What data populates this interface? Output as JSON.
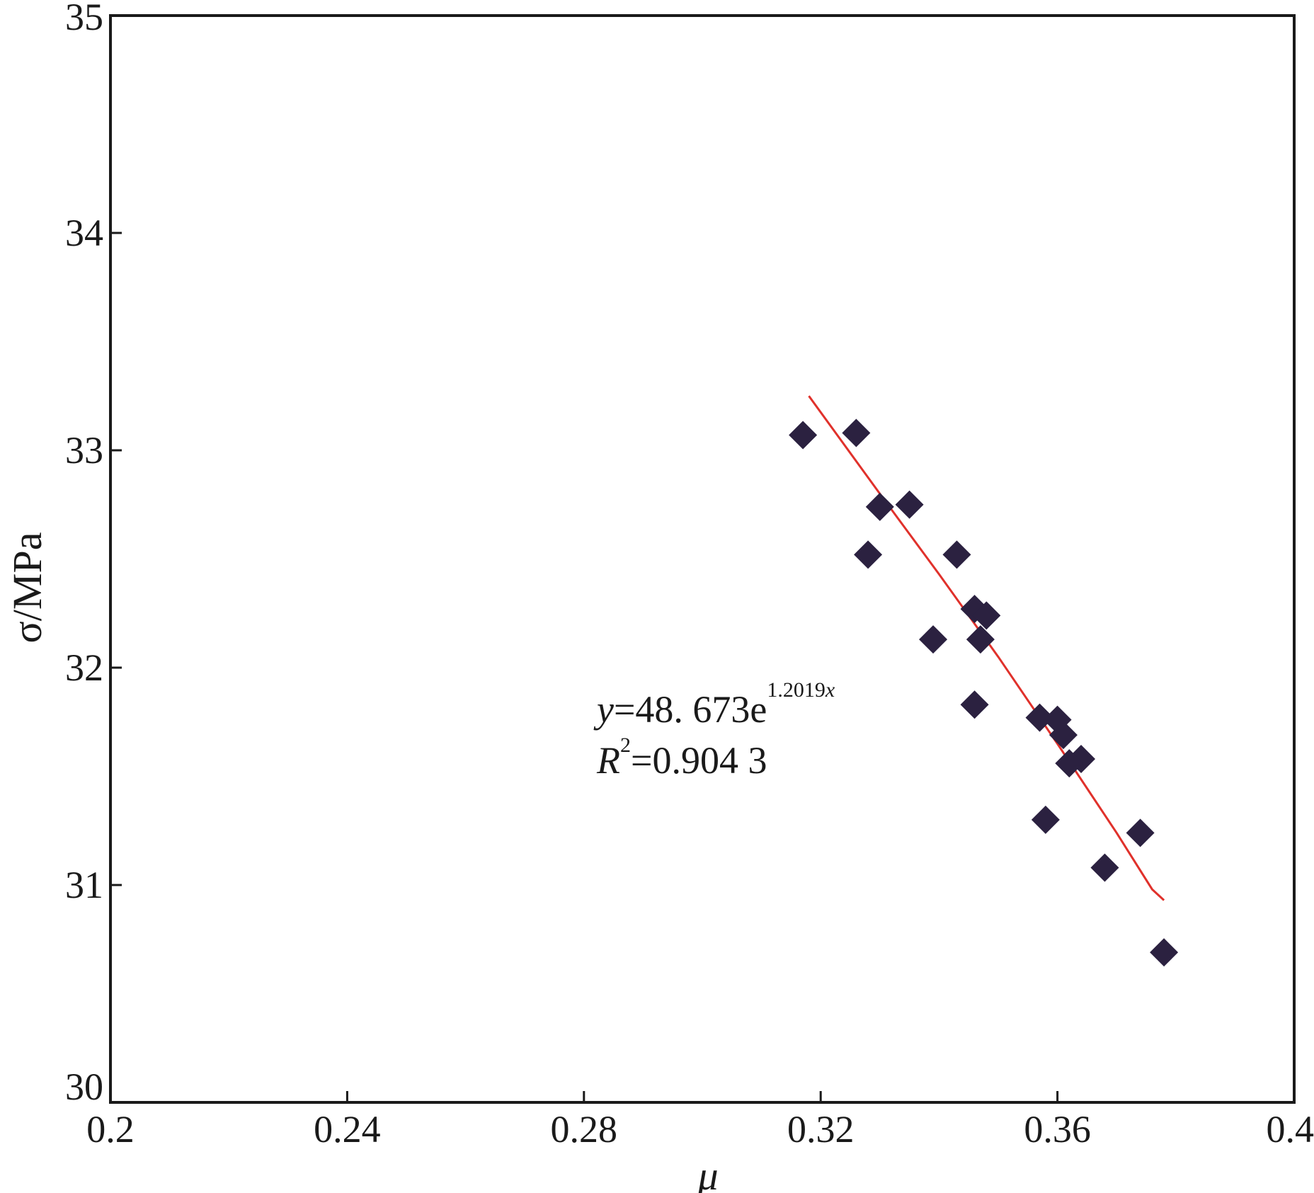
{
  "chart_data": {
    "type": "scatter",
    "title": "",
    "xlabel": "μ",
    "ylabel": "σ/MPa",
    "xlim": [
      0.2,
      0.4
    ],
    "ylim": [
      30,
      35
    ],
    "x_ticks": [
      "0.2",
      "0.24",
      "0.28",
      "0.32",
      "0.36",
      "0.4"
    ],
    "y_ticks": [
      "30",
      "31",
      "32",
      "33",
      "34",
      "35"
    ],
    "grid": false,
    "series": [
      {
        "marker": "diamond",
        "color": "#2b2140",
        "points": [
          [
            0.317,
            33.07
          ],
          [
            0.326,
            33.08
          ],
          [
            0.33,
            32.74
          ],
          [
            0.328,
            32.52
          ],
          [
            0.335,
            32.75
          ],
          [
            0.343,
            32.52
          ],
          [
            0.346,
            32.27
          ],
          [
            0.348,
            32.24
          ],
          [
            0.347,
            32.13
          ],
          [
            0.339,
            32.13
          ],
          [
            0.346,
            31.83
          ],
          [
            0.357,
            31.77
          ],
          [
            0.36,
            31.76
          ],
          [
            0.361,
            31.69
          ],
          [
            0.364,
            31.58
          ],
          [
            0.362,
            31.56
          ],
          [
            0.358,
            31.3
          ],
          [
            0.374,
            31.24
          ],
          [
            0.368,
            31.08
          ],
          [
            0.378,
            30.69
          ]
        ]
      }
    ],
    "fit": {
      "color": "#e0312b",
      "line": [
        [
          0.318,
          33.25
        ],
        [
          0.33,
          32.8
        ],
        [
          0.34,
          32.43
        ],
        [
          0.35,
          32.05
        ],
        [
          0.36,
          31.65
        ],
        [
          0.37,
          31.24
        ],
        [
          0.376,
          30.98
        ],
        [
          0.378,
          30.93
        ]
      ],
      "annotation": {
        "equation": {
          "y": "y",
          "eq": "=48. 673e",
          "exp": "1.2019",
          "x": "x"
        },
        "r2": {
          "r": "R",
          "sup": "2",
          "value": "=0.904 3"
        }
      }
    }
  }
}
